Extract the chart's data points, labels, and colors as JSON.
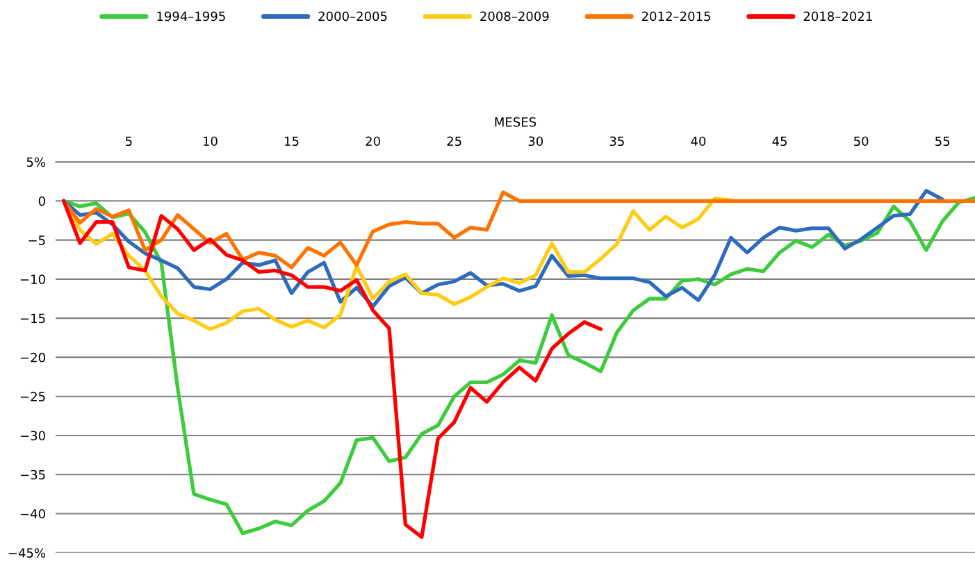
{
  "chart_data": {
    "type": "line",
    "xlabel": "MESES",
    "x": [
      1,
      2,
      3,
      4,
      5,
      6,
      7,
      8,
      9,
      10,
      11,
      12,
      13,
      14,
      15,
      16,
      17,
      18,
      19,
      20,
      21,
      22,
      23,
      24,
      25,
      26,
      27,
      28,
      29,
      30,
      31,
      32,
      33,
      34,
      35,
      36,
      37,
      38,
      39,
      40,
      41,
      42,
      43,
      44,
      45,
      46,
      47,
      48,
      49,
      50,
      51,
      52,
      53,
      54,
      55,
      56,
      57
    ],
    "xlim": [
      0.5,
      57
    ],
    "xticks": [
      5,
      10,
      15,
      20,
      25,
      30,
      35,
      40,
      45,
      50,
      55
    ],
    "ylim": [
      -45,
      5
    ],
    "yticks": [
      {
        "value": 5,
        "label": "5%"
      },
      0,
      {
        "value": -5,
        "label": "−5"
      },
      {
        "value": -10,
        "label": "−10"
      },
      {
        "value": -15,
        "label": "−15"
      },
      {
        "value": -20,
        "label": "−20"
      },
      {
        "value": -25,
        "label": "−25"
      },
      {
        "value": -30,
        "label": "−30"
      },
      {
        "value": -35,
        "label": "−35"
      },
      {
        "value": -40,
        "label": "−40"
      },
      {
        "value": -45,
        "label": "−45%"
      }
    ],
    "grid": "y",
    "legend": "top",
    "marker": "none",
    "line_style": "solid",
    "series": [
      {
        "name": "1994–1995",
        "color": "#3dcc3d",
        "values": [
          0,
          -0.7,
          -0.3,
          -2.1,
          -1.6,
          -4.0,
          -7.9,
          -23.9,
          -37.5,
          -38.2,
          -38.8,
          -42.5,
          -41.9,
          -41.0,
          -41.5,
          -39.6,
          -38.4,
          -36.1,
          -30.6,
          -30.3,
          -33.3,
          -32.8,
          -29.8,
          -28.7,
          -25.0,
          -23.2,
          -23.2,
          -22.2,
          -20.4,
          -20.7,
          -14.6,
          -19.7,
          -20.7,
          -21.8,
          -16.8,
          -14.0,
          -12.5,
          -12.5,
          -10.2,
          -10.0,
          -10.7,
          -9.4,
          -8.7,
          -9.0,
          -6.6,
          -5.1,
          -5.9,
          -4.3,
          -5.7,
          -5.1,
          -4.1,
          -0.7,
          -2.6,
          -6.3,
          -2.6,
          -0.2,
          0.4
        ]
      },
      {
        "name": "2000–2005",
        "color": "#2f6bbd",
        "x": [
          1,
          2,
          3,
          4,
          5,
          6,
          7,
          8,
          9,
          10,
          11,
          12,
          13,
          14,
          15,
          16,
          17,
          18,
          19,
          20,
          21,
          22,
          23,
          24,
          25,
          26,
          27,
          28,
          29,
          30,
          31,
          32,
          33,
          34,
          35,
          36,
          37,
          38,
          39,
          40,
          41,
          42,
          43,
          44,
          45,
          46,
          47,
          48,
          49,
          50,
          51,
          52,
          53,
          54,
          55
        ],
        "values": [
          0,
          -1.8,
          -1.5,
          -3.0,
          -5.2,
          -6.7,
          -7.6,
          -8.6,
          -11.0,
          -11.3,
          -10.0,
          -7.9,
          -8.2,
          -7.6,
          -11.8,
          -9.1,
          -7.9,
          -12.9,
          -11.1,
          -13.5,
          -10.9,
          -9.8,
          -11.8,
          -10.7,
          -10.3,
          -9.2,
          -10.8,
          -10.6,
          -11.5,
          -10.9,
          -7.0,
          -9.6,
          -9.5,
          -9.9,
          -9.9,
          -9.9,
          -10.4,
          -12.2,
          -11.1,
          -12.7,
          -9.5,
          -4.7,
          -6.6,
          -4.7,
          -3.4,
          -3.8,
          -3.5,
          -3.5,
          -6.1,
          -4.9,
          -3.4,
          -1.9,
          -1.7,
          1.3,
          0.2
        ]
      },
      {
        "name": "2008–2009",
        "color": "#ffcc14",
        "x": [
          1,
          2,
          3,
          4,
          5,
          6,
          7,
          8,
          9,
          10,
          11,
          12,
          13,
          14,
          15,
          16,
          17,
          18,
          19,
          20,
          21,
          22,
          23,
          24,
          25,
          26,
          27,
          28,
          29,
          30,
          31,
          32,
          33,
          34,
          35,
          36,
          37,
          38,
          39,
          40,
          41,
          42
        ],
        "values": [
          0,
          -3.7,
          -5.5,
          -4.2,
          -7.0,
          -8.9,
          -12.2,
          -14.4,
          -15.3,
          -16.4,
          -15.6,
          -14.1,
          -13.8,
          -15.2,
          -16.1,
          -15.3,
          -16.2,
          -14.6,
          -8.3,
          -12.5,
          -10.3,
          -9.4,
          -11.8,
          -12.0,
          -13.2,
          -12.3,
          -11.0,
          -9.9,
          -10.5,
          -9.5,
          -5.4,
          -9.1,
          -9.1,
          -7.4,
          -5.5,
          -1.3,
          -3.7,
          -2.0,
          -3.4,
          -2.3,
          0.3,
          0.1
        ]
      },
      {
        "name": "2012–2015",
        "color": "#ff7300",
        "values": [
          0,
          -2.8,
          -1.0,
          -2.0,
          -1.2,
          -6.3,
          -5.0,
          -1.8,
          -3.6,
          -5.4,
          -4.2,
          -7.5,
          -6.6,
          -7.0,
          -8.5,
          -6.0,
          -7.0,
          -5.3,
          -8.2,
          -3.9,
          -3.0,
          -2.7,
          -2.9,
          -2.9,
          -4.7,
          -3.4,
          -3.7,
          1.1,
          0,
          0,
          0,
          0,
          0,
          0,
          0,
          0,
          0,
          0,
          0,
          0,
          0,
          0,
          0,
          0,
          0,
          0,
          0,
          0,
          0,
          0,
          0,
          0,
          0,
          0,
          0,
          0,
          0
        ]
      },
      {
        "name": "2018–2021",
        "color": "#ff0000",
        "x": [
          1,
          2,
          3,
          4,
          5,
          6,
          7,
          8,
          9,
          10,
          11,
          12,
          13,
          14,
          15,
          16,
          17,
          18,
          19,
          20,
          21,
          22,
          23,
          24,
          25,
          26,
          27,
          28,
          29,
          30,
          31,
          32,
          33,
          34
        ],
        "values": [
          0,
          -5.4,
          -2.7,
          -2.7,
          -8.5,
          -8.9,
          -1.9,
          -3.6,
          -6.3,
          -4.9,
          -6.9,
          -7.6,
          -9.1,
          -8.9,
          -9.5,
          -11.0,
          -11.0,
          -11.5,
          -10.1,
          -14.0,
          -16.3,
          -41.4,
          -43.0,
          -30.4,
          -28.3,
          -23.9,
          -25.7,
          -23.2,
          -21.3,
          -23.0,
          -18.9,
          -17.0,
          -15.5,
          -16.4
        ]
      }
    ]
  }
}
